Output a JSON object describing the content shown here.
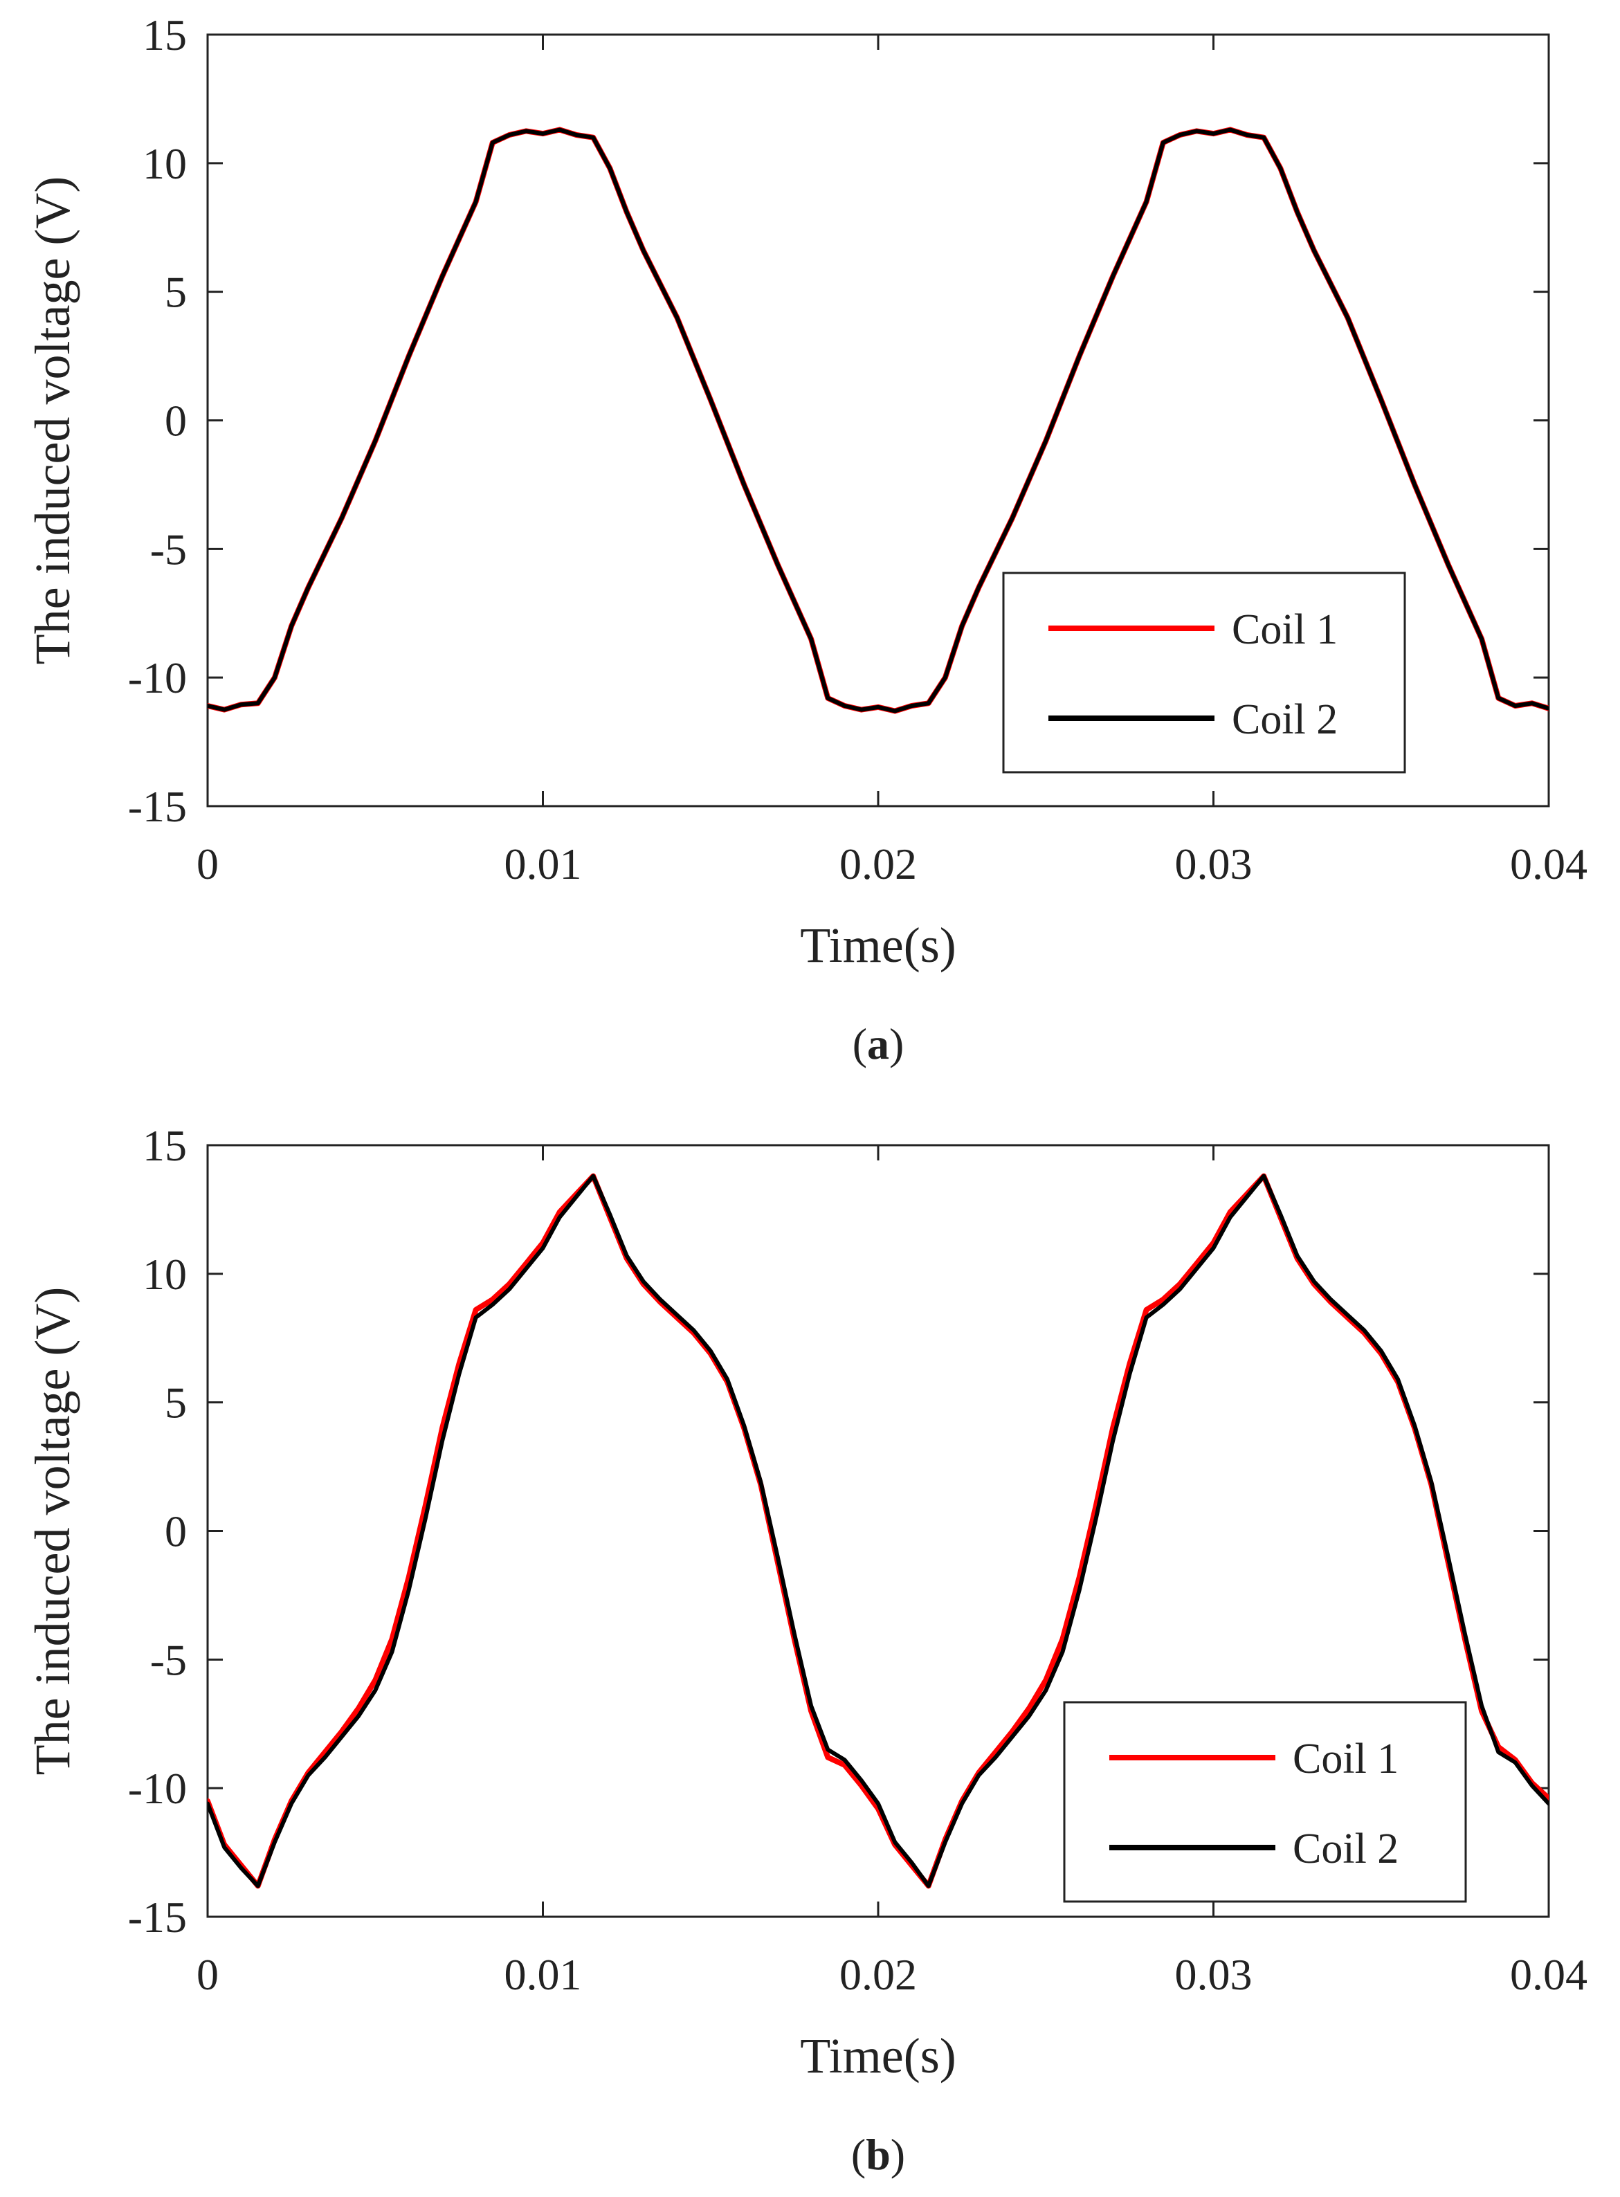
{
  "chart_data": [
    {
      "type": "line",
      "panel_label": "a",
      "caption_open": "(",
      "caption_close": ")",
      "xlabel": "Time(s)",
      "ylabel": "The induced voltage (V)",
      "xlim": [
        0,
        0.04
      ],
      "ylim": [
        -15,
        15
      ],
      "xticks": [
        0,
        0.01,
        0.02,
        0.03,
        0.04
      ],
      "xtick_labels": [
        "0",
        "0.01",
        "0.02",
        "0.03",
        "0.04"
      ],
      "yticks": [
        15,
        10,
        5,
        0,
        -5,
        -10,
        -15
      ],
      "ytick_labels": [
        "15",
        "10",
        "5",
        "0",
        "-5",
        "-10",
        "-15"
      ],
      "legend_position": "lower-right",
      "series": [
        {
          "name": "Coil 1",
          "color": "#ff0000",
          "x": [
            0,
            0.0005,
            0.001,
            0.0015,
            0.002,
            0.0025,
            0.003,
            0.004,
            0.005,
            0.006,
            0.007,
            0.008,
            0.0085,
            0.009,
            0.0095,
            0.01,
            0.0105,
            0.011,
            0.0115,
            0.012,
            0.0125,
            0.013,
            0.014,
            0.015,
            0.016,
            0.017,
            0.018,
            0.0185,
            0.019,
            0.0195,
            0.02,
            0.0205,
            0.021,
            0.0215,
            0.022,
            0.0225,
            0.023,
            0.024,
            0.025,
            0.026,
            0.027,
            0.028,
            0.0285,
            0.029,
            0.0295,
            0.03,
            0.0305,
            0.031,
            0.0315,
            0.032,
            0.0325,
            0.033,
            0.034,
            0.035,
            0.036,
            0.037,
            0.038,
            0.0385,
            0.039,
            0.0395,
            0.04
          ],
          "y": [
            -11.1,
            -11.25,
            -11.05,
            -11.0,
            -10.0,
            -8.0,
            -6.5,
            -3.8,
            -0.8,
            2.5,
            5.6,
            8.5,
            10.8,
            11.1,
            11.25,
            11.15,
            11.3,
            11.1,
            11.0,
            9.8,
            8.1,
            6.6,
            4.0,
            0.8,
            -2.5,
            -5.6,
            -8.5,
            -10.8,
            -11.1,
            -11.25,
            -11.15,
            -11.3,
            -11.1,
            -11.0,
            -10.0,
            -8.0,
            -6.5,
            -3.8,
            -0.8,
            2.5,
            5.6,
            8.5,
            10.8,
            11.1,
            11.25,
            11.15,
            11.3,
            11.1,
            11.0,
            9.8,
            8.1,
            6.6,
            4.0,
            0.8,
            -2.5,
            -5.6,
            -8.5,
            -10.8,
            -11.1,
            -11.0,
            -11.2
          ]
        },
        {
          "name": "Coil 2",
          "color": "#000000",
          "x": [
            0,
            0.0005,
            0.001,
            0.0015,
            0.002,
            0.0025,
            0.003,
            0.004,
            0.005,
            0.006,
            0.007,
            0.008,
            0.0085,
            0.009,
            0.0095,
            0.01,
            0.0105,
            0.011,
            0.0115,
            0.012,
            0.0125,
            0.013,
            0.014,
            0.015,
            0.016,
            0.017,
            0.018,
            0.0185,
            0.019,
            0.0195,
            0.02,
            0.0205,
            0.021,
            0.0215,
            0.022,
            0.0225,
            0.023,
            0.024,
            0.025,
            0.026,
            0.027,
            0.028,
            0.0285,
            0.029,
            0.0295,
            0.03,
            0.0305,
            0.031,
            0.0315,
            0.032,
            0.0325,
            0.033,
            0.034,
            0.035,
            0.036,
            0.037,
            0.038,
            0.0385,
            0.039,
            0.0395,
            0.04
          ],
          "y": [
            -11.1,
            -11.25,
            -11.05,
            -11.0,
            -10.0,
            -8.0,
            -6.5,
            -3.8,
            -0.8,
            2.5,
            5.6,
            8.5,
            10.8,
            11.1,
            11.25,
            11.15,
            11.3,
            11.1,
            11.0,
            9.8,
            8.1,
            6.6,
            4.0,
            0.8,
            -2.5,
            -5.6,
            -8.5,
            -10.8,
            -11.1,
            -11.25,
            -11.15,
            -11.3,
            -11.1,
            -11.0,
            -10.0,
            -8.0,
            -6.5,
            -3.8,
            -0.8,
            2.5,
            5.6,
            8.5,
            10.8,
            11.1,
            11.25,
            11.15,
            11.3,
            11.1,
            11.0,
            9.8,
            8.1,
            6.6,
            4.0,
            0.8,
            -2.5,
            -5.6,
            -8.5,
            -10.8,
            -11.1,
            -11.0,
            -11.2
          ]
        }
      ]
    },
    {
      "type": "line",
      "panel_label": "b",
      "caption_open": "(",
      "caption_close": ")",
      "xlabel": "Time(s)",
      "ylabel": "The induced voltage (V)",
      "xlim": [
        0,
        0.04
      ],
      "ylim": [
        -15,
        15
      ],
      "xticks": [
        0,
        0.01,
        0.02,
        0.03,
        0.04
      ],
      "xtick_labels": [
        "0",
        "0.01",
        "0.02",
        "0.03",
        "0.04"
      ],
      "yticks": [
        15,
        10,
        5,
        0,
        -5,
        -10,
        -15
      ],
      "ytick_labels": [
        "15",
        "10",
        "5",
        "0",
        "-5",
        "-10",
        "-15"
      ],
      "legend_position": "lower-right",
      "series": [
        {
          "name": "Coil 1",
          "color": "#ff0000",
          "x": [
            0,
            0.0005,
            0.001,
            0.0015,
            0.002,
            0.0025,
            0.003,
            0.0035,
            0.004,
            0.0045,
            0.005,
            0.0055,
            0.006,
            0.0065,
            0.007,
            0.0075,
            0.008,
            0.0085,
            0.009,
            0.0095,
            0.01,
            0.0105,
            0.011,
            0.0115,
            0.012,
            0.0125,
            0.013,
            0.0135,
            0.014,
            0.0145,
            0.015,
            0.0155,
            0.016,
            0.0165,
            0.017,
            0.0175,
            0.018,
            0.0185,
            0.019,
            0.0195,
            0.02,
            0.0205,
            0.021,
            0.0215,
            0.022,
            0.0225,
            0.023,
            0.0235,
            0.024,
            0.0245,
            0.025,
            0.0255,
            0.026,
            0.0265,
            0.027,
            0.0275,
            0.028,
            0.0285,
            0.029,
            0.0295,
            0.03,
            0.0305,
            0.031,
            0.0315,
            0.032,
            0.0325,
            0.033,
            0.0335,
            0.034,
            0.0345,
            0.035,
            0.0355,
            0.036,
            0.0365,
            0.037,
            0.0375,
            0.038,
            0.0385,
            0.039,
            0.0395,
            0.04
          ],
          "y": [
            -10.5,
            -12.2,
            -13.0,
            -13.8,
            -12.0,
            -10.5,
            -9.4,
            -8.6,
            -7.8,
            -6.9,
            -5.8,
            -4.2,
            -1.8,
            1.0,
            4.0,
            6.5,
            8.6,
            9.0,
            9.6,
            10.4,
            11.2,
            12.4,
            13.1,
            13.8,
            12.2,
            10.6,
            9.6,
            8.9,
            8.3,
            7.7,
            6.9,
            5.8,
            4.0,
            1.8,
            -1.2,
            -4.2,
            -7.0,
            -8.8,
            -9.1,
            -9.9,
            -10.8,
            -12.2,
            -13.0,
            -13.8,
            -12.0,
            -10.5,
            -9.4,
            -8.6,
            -7.8,
            -6.9,
            -5.8,
            -4.2,
            -1.8,
            1.0,
            4.0,
            6.5,
            8.6,
            9.0,
            9.6,
            10.4,
            11.2,
            12.4,
            13.1,
            13.8,
            12.2,
            10.6,
            9.6,
            8.9,
            8.3,
            7.7,
            6.9,
            5.8,
            4.0,
            1.8,
            -1.2,
            -4.2,
            -7.0,
            -8.4,
            -8.9,
            -9.8,
            -10.4
          ]
        },
        {
          "name": "Coil 2",
          "color": "#000000",
          "x": [
            0,
            0.0005,
            0.001,
            0.0015,
            0.002,
            0.0025,
            0.003,
            0.0035,
            0.004,
            0.0045,
            0.005,
            0.0055,
            0.006,
            0.0065,
            0.007,
            0.0075,
            0.008,
            0.0085,
            0.009,
            0.0095,
            0.01,
            0.0105,
            0.011,
            0.0115,
            0.012,
            0.0125,
            0.013,
            0.0135,
            0.014,
            0.0145,
            0.015,
            0.0155,
            0.016,
            0.0165,
            0.017,
            0.0175,
            0.018,
            0.0185,
            0.019,
            0.0195,
            0.02,
            0.0205,
            0.021,
            0.0215,
            0.022,
            0.0225,
            0.023,
            0.0235,
            0.024,
            0.0245,
            0.025,
            0.0255,
            0.026,
            0.0265,
            0.027,
            0.0275,
            0.028,
            0.0285,
            0.029,
            0.0295,
            0.03,
            0.0305,
            0.031,
            0.0315,
            0.032,
            0.0325,
            0.033,
            0.0335,
            0.034,
            0.0345,
            0.035,
            0.0355,
            0.036,
            0.0365,
            0.037,
            0.0375,
            0.038,
            0.0385,
            0.039,
            0.0395,
            0.04
          ],
          "y": [
            -10.6,
            -12.3,
            -13.1,
            -13.8,
            -12.1,
            -10.6,
            -9.5,
            -8.8,
            -8.0,
            -7.2,
            -6.2,
            -4.7,
            -2.3,
            0.5,
            3.5,
            6.1,
            8.3,
            8.8,
            9.4,
            10.2,
            11.0,
            12.2,
            13.0,
            13.8,
            12.3,
            10.7,
            9.7,
            9.0,
            8.4,
            7.8,
            7.0,
            5.9,
            4.1,
            1.9,
            -1.0,
            -4.0,
            -6.8,
            -8.5,
            -8.9,
            -9.7,
            -10.6,
            -12.1,
            -12.9,
            -13.8,
            -12.1,
            -10.6,
            -9.5,
            -8.8,
            -8.0,
            -7.2,
            -6.2,
            -4.7,
            -2.3,
            0.5,
            3.5,
            6.1,
            8.3,
            8.8,
            9.4,
            10.2,
            11.0,
            12.2,
            13.0,
            13.8,
            12.3,
            10.7,
            9.7,
            9.0,
            8.4,
            7.8,
            7.0,
            5.9,
            4.1,
            1.9,
            -1.0,
            -4.0,
            -6.8,
            -8.6,
            -9.0,
            -9.9,
            -10.6
          ]
        }
      ]
    }
  ]
}
